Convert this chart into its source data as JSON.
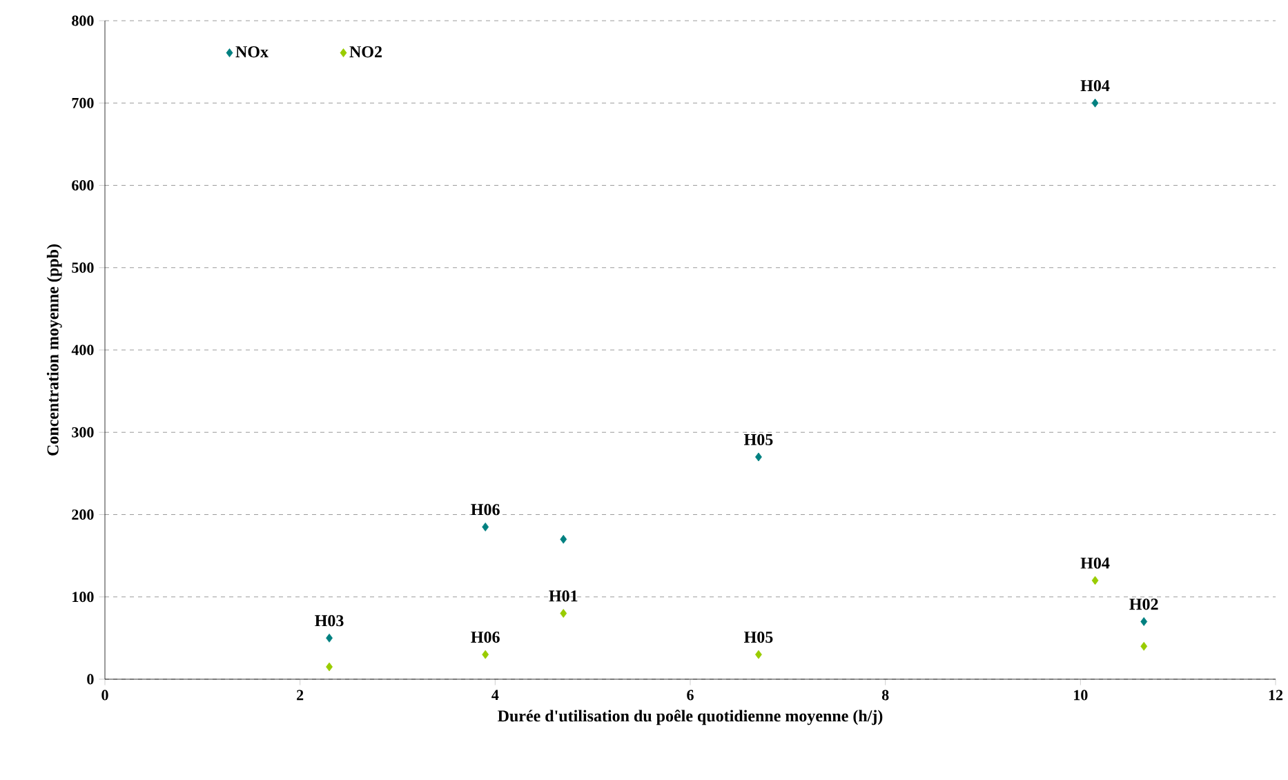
{
  "chart_data": {
    "type": "scatter",
    "xlabel": "Durée d'utilisation du poêle quotidienne moyenne (h/j)",
    "ylabel": "Concentration moyenne (ppb)",
    "xlim": [
      0,
      12
    ],
    "ylim": [
      0,
      800
    ],
    "xticks": [
      0,
      2,
      4,
      6,
      8,
      10,
      12
    ],
    "yticks": [
      0,
      100,
      200,
      300,
      400,
      500,
      600,
      700,
      800
    ],
    "grid": "y",
    "legend": "top left",
    "marker": "diamond",
    "x": [
      2.3,
      3.9,
      4.7,
      6.7,
      10.15,
      10.65
    ],
    "series": [
      {
        "name": "NOx",
        "color": "#008080",
        "values": [
          50,
          185,
          170,
          270,
          700,
          70
        ]
      },
      {
        "name": "NO2",
        "color": "#99cc00",
        "values": [
          15,
          30,
          80,
          30,
          120,
          40
        ]
      }
    ],
    "annotations": [
      {
        "text": "H03",
        "x": 2.3,
        "y": 50
      },
      {
        "text": "H06",
        "x": 3.9,
        "y": 185
      },
      {
        "text": "H05",
        "x": 6.7,
        "y": 270
      },
      {
        "text": "H04",
        "x": 10.15,
        "y": 700
      },
      {
        "text": "H02",
        "x": 10.65,
        "y": 70
      },
      {
        "text": "H06",
        "x": 3.9,
        "y": 30
      },
      {
        "text": "H01",
        "x": 4.7,
        "y": 80
      },
      {
        "text": "H05",
        "x": 6.7,
        "y": 30
      },
      {
        "text": "H04",
        "x": 10.15,
        "y": 120
      }
    ]
  }
}
